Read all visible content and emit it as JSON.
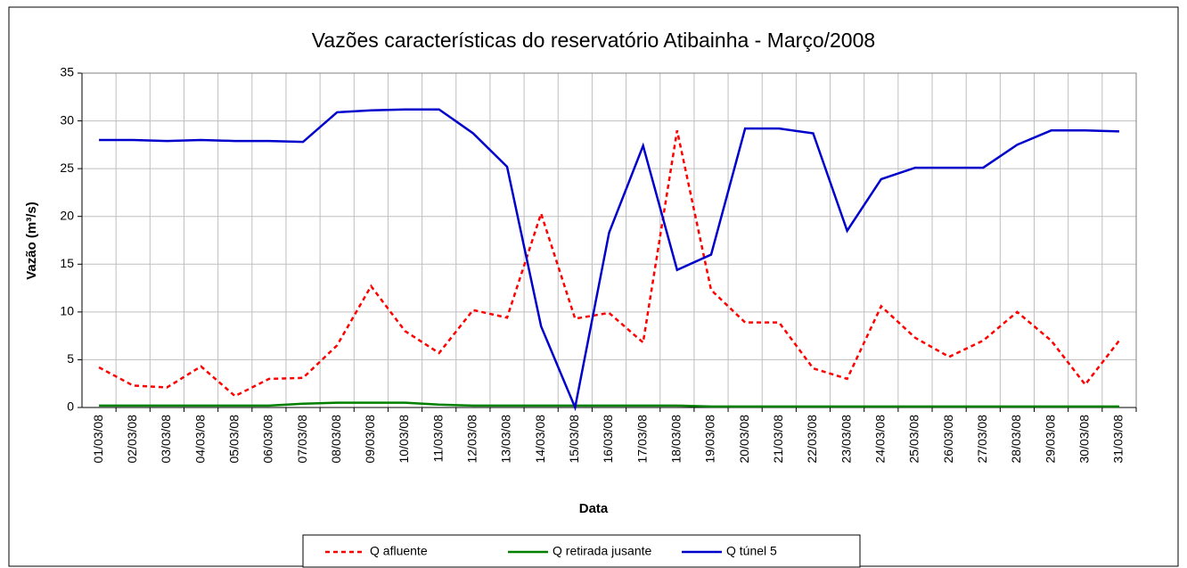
{
  "chart_data": {
    "type": "line",
    "title": "Vazões características do reservatório Atibainha - Março/2008",
    "x_label": "Data",
    "y_label": "Vazão (m³/s)",
    "categories": [
      "01/03/08",
      "02/03/08",
      "03/03/08",
      "04/03/08",
      "05/03/08",
      "06/03/08",
      "07/03/08",
      "08/03/08",
      "09/03/08",
      "10/03/08",
      "11/03/08",
      "12/03/08",
      "13/03/08",
      "14/03/08",
      "15/03/08",
      "16/03/08",
      "17/03/08",
      "18/03/08",
      "19/03/08",
      "20/03/08",
      "21/03/08",
      "22/03/08",
      "23/03/08",
      "24/03/08",
      "25/03/08",
      "26/03/08",
      "27/03/08",
      "28/03/08",
      "29/03/08",
      "30/03/08",
      "31/03/08"
    ],
    "series": [
      {
        "name": "Q afluente",
        "color": "#ff0000",
        "line_style": "dotted",
        "values": [
          4.2,
          2.3,
          2.1,
          4.3,
          1.2,
          3.0,
          3.1,
          6.5,
          12.7,
          8.0,
          5.7,
          10.2,
          9.4,
          20.3,
          9.3,
          9.9,
          6.8,
          29.0,
          12.3,
          8.9,
          8.9,
          4.1,
          3.0,
          10.6,
          7.3,
          5.3,
          7.0,
          10.0,
          7.0,
          2.4,
          7.0
        ]
      },
      {
        "name": "Q retirada jusante",
        "color": "#008000",
        "line_style": "solid",
        "values": [
          0.2,
          0.2,
          0.2,
          0.2,
          0.2,
          0.2,
          0.4,
          0.5,
          0.5,
          0.5,
          0.3,
          0.2,
          0.2,
          0.2,
          0.2,
          0.2,
          0.2,
          0.2,
          0.1,
          0.1,
          0.1,
          0.1,
          0.1,
          0.1,
          0.1,
          0.1,
          0.1,
          0.1,
          0.1,
          0.1,
          0.1
        ]
      },
      {
        "name": "Q túnel 5",
        "color": "#0000cc",
        "line_style": "solid",
        "values": [
          28.0,
          28.0,
          27.9,
          28.0,
          27.9,
          27.9,
          27.8,
          30.9,
          31.1,
          31.2,
          31.2,
          28.7,
          25.2,
          8.5,
          0.0,
          18.3,
          27.4,
          14.4,
          16.0,
          29.2,
          29.2,
          28.7,
          18.5,
          23.9,
          25.1,
          25.1,
          25.1,
          27.5,
          29.0,
          29.0,
          28.9
        ]
      }
    ],
    "ylim": [
      0,
      35
    ],
    "yticks": [
      0,
      5,
      10,
      15,
      20,
      25,
      30,
      35
    ],
    "grid": true,
    "legend": "bottom"
  }
}
